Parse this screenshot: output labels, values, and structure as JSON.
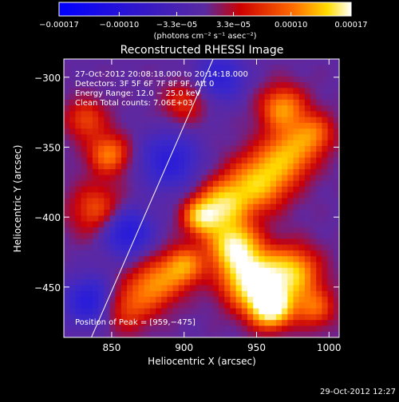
{
  "chart_data": {
    "type": "heatmap",
    "title": "Reconstructed RHESSI Image",
    "xlabel": "Heliocentric X (arcsec)",
    "ylabel": "Heliocentric Y (arcsec)",
    "xlim": [
      817,
      1007
    ],
    "ylim": [
      -486,
      -287
    ],
    "x_ticks": [
      {
        "value": 850,
        "label": "850"
      },
      {
        "value": 900,
        "label": "900"
      },
      {
        "value": 950,
        "label": "950"
      },
      {
        "value": 1000,
        "label": "1000"
      }
    ],
    "y_ticks": [
      {
        "value": -300,
        "label": "−300"
      },
      {
        "value": -350,
        "label": "−350"
      },
      {
        "value": -400,
        "label": "−400"
      },
      {
        "value": -450,
        "label": "−450"
      }
    ],
    "colorbar": {
      "min": -0.00017,
      "max": 0.00017,
      "ticks": [
        {
          "value": -0.00017,
          "label": "−0.00017"
        },
        {
          "value": -0.0001,
          "label": "−0.00010"
        },
        {
          "value": -3.3e-05,
          "label": "−3.3e−05"
        },
        {
          "value": 3.3e-05,
          "label": "3.3e−05"
        },
        {
          "value": 0.0001,
          "label": "0.00010"
        },
        {
          "value": 0.00017,
          "label": "0.00017"
        }
      ],
      "unit_label": "(photons cm⁻² s⁻¹ asec⁻²)"
    },
    "info_lines": [
      "27-Oct-2012 20:08:18.000  to  20:14:18.000",
      "Detectors: 3F 5F 6F 7F 8F 9F, Att 0",
      "Energy Range: 12.0 − 25.0 keV",
      "Clean     Total counts: 7.06E+03"
    ],
    "peak_label": "Position of Peak = [959,−475]",
    "limb_line": [
      [
        836,
        -486
      ],
      [
        920,
        -287
      ]
    ],
    "grid": false,
    "sources": [
      {
        "x": 947,
        "y": -445,
        "amp": 1.0,
        "s": 14
      },
      {
        "x": 960,
        "y": -465,
        "amp": 1.0,
        "s": 10
      },
      {
        "x": 934,
        "y": -420,
        "amp": 0.85,
        "s": 12
      },
      {
        "x": 928,
        "y": -390,
        "amp": 0.7,
        "s": 12
      },
      {
        "x": 952,
        "y": -375,
        "amp": 0.7,
        "s": 14
      },
      {
        "x": 972,
        "y": -355,
        "amp": 0.6,
        "s": 13
      },
      {
        "x": 968,
        "y": -322,
        "amp": 0.6,
        "s": 11
      },
      {
        "x": 990,
        "y": -340,
        "amp": 0.45,
        "s": 10
      },
      {
        "x": 975,
        "y": -440,
        "amp": 0.7,
        "s": 13
      },
      {
        "x": 990,
        "y": -465,
        "amp": 0.45,
        "s": 10
      },
      {
        "x": 912,
        "y": -400,
        "amp": 0.7,
        "s": 9
      },
      {
        "x": 900,
        "y": -435,
        "amp": 0.6,
        "s": 10
      },
      {
        "x": 880,
        "y": -448,
        "amp": 0.55,
        "s": 12
      },
      {
        "x": 860,
        "y": -465,
        "amp": 0.4,
        "s": 12
      },
      {
        "x": 848,
        "y": -355,
        "amp": 0.55,
        "s": 10
      },
      {
        "x": 840,
        "y": -395,
        "amp": 0.45,
        "s": 13
      },
      {
        "x": 832,
        "y": -330,
        "amp": 0.4,
        "s": 10
      },
      {
        "x": 900,
        "y": -318,
        "amp": 0.35,
        "s": 10
      },
      {
        "x": 890,
        "y": -360,
        "amp": -0.45,
        "s": 14
      },
      {
        "x": 860,
        "y": -410,
        "amp": -0.55,
        "s": 12
      },
      {
        "x": 835,
        "y": -460,
        "amp": -0.5,
        "s": 12
      },
      {
        "x": 925,
        "y": -300,
        "amp": -0.4,
        "s": 12
      }
    ]
  },
  "footer": {
    "timestamp": "29-Oct-2012 12:27"
  }
}
